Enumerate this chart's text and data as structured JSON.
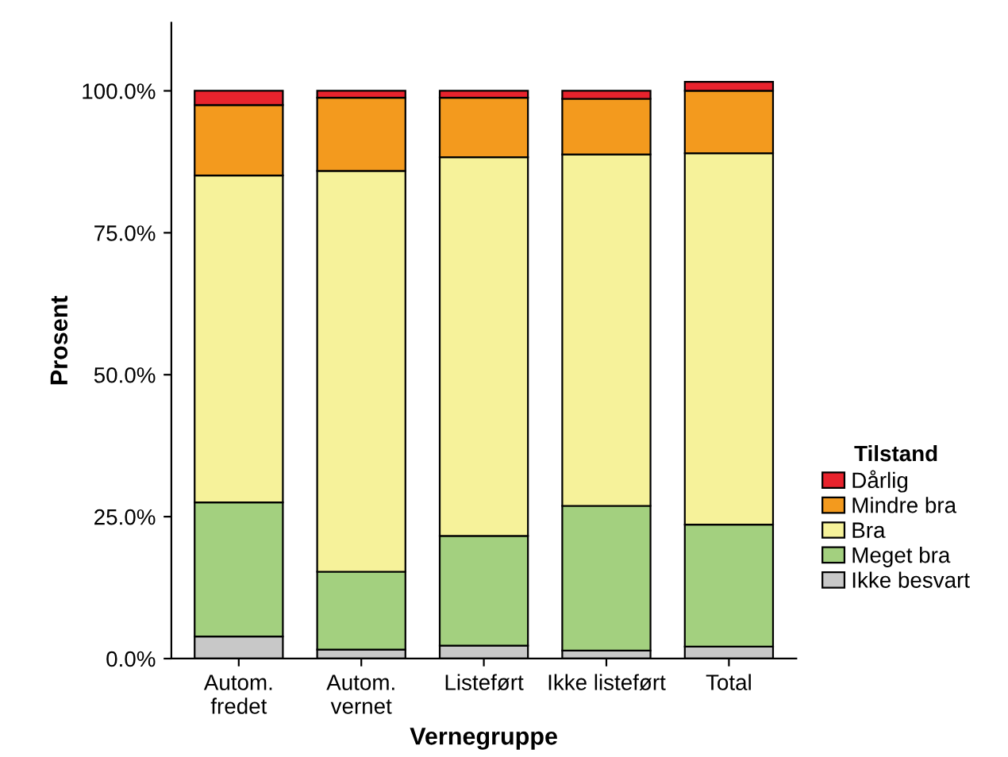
{
  "chart_data": {
    "type": "bar",
    "stacked": true,
    "xlabel": "Vernegruppe",
    "ylabel": "Prosent",
    "legend_title": "Tilstand",
    "legend": "right",
    "grid": false,
    "categories": [
      "Autom.\nfredet",
      "Autom.\nvernet",
      "Listeført",
      "Ikke listeført",
      "Total"
    ],
    "ylim": [
      0,
      112
    ],
    "yticks": [
      {
        "value": 0,
        "label": "0.0%"
      },
      {
        "value": 25,
        "label": "25.0%"
      },
      {
        "value": 50,
        "label": "50.0%"
      },
      {
        "value": 75,
        "label": "75.0%"
      },
      {
        "value": 100,
        "label": "100.0%"
      }
    ],
    "series": [
      {
        "name": "Ikke besvart",
        "color": "#c8c8c8",
        "values": [
          3.9,
          1.6,
          2.3,
          1.4,
          2.1
        ]
      },
      {
        "name": "Meget bra",
        "color": "#a3d07f",
        "values": [
          23.6,
          13.7,
          19.3,
          25.5,
          21.5
        ]
      },
      {
        "name": "Bra",
        "color": "#f6f29a",
        "values": [
          57.6,
          70.6,
          66.7,
          61.9,
          65.4
        ]
      },
      {
        "name": "Mindre bra",
        "color": "#f39a1e",
        "values": [
          12.4,
          12.9,
          10.5,
          9.8,
          11.0
        ]
      },
      {
        "name": "Dårlig",
        "color": "#e8232d",
        "values": [
          2.5,
          1.2,
          1.2,
          1.4,
          1.6
        ]
      }
    ]
  }
}
